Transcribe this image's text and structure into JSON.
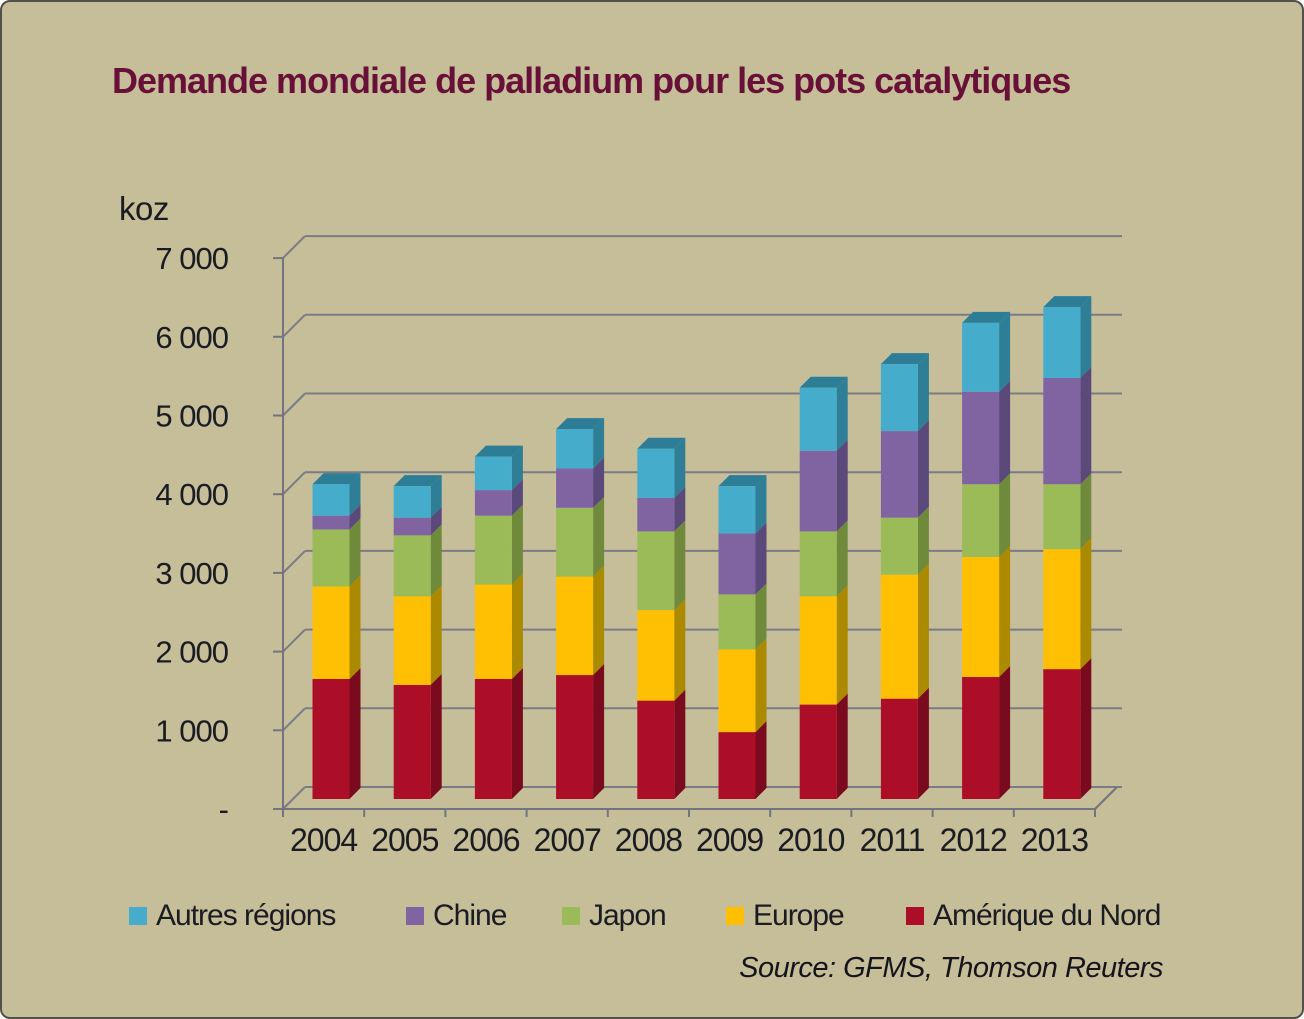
{
  "frame": {
    "background": "#C5BE99",
    "border_color": "#51504C"
  },
  "title": {
    "text": "Demande mondiale de palladium pour les pots catalytiques",
    "color": "#681038"
  },
  "axis_unit_label": "koz",
  "source_note": "Source: GFMS,  Thomson Reuters",
  "legend": {
    "position": "bottom",
    "items": [
      {
        "label": "Autres régions",
        "color": "#45ACCB"
      },
      {
        "label": "Chine",
        "color": "#8064A2"
      },
      {
        "label": "Japon",
        "color": "#9BBB59"
      },
      {
        "label": "Europe",
        "color": "#FFC003"
      },
      {
        "label": "Amérique du Nord",
        "color": "#AC0D27"
      }
    ]
  },
  "chart_data": {
    "type": "bar",
    "stacked": true,
    "style": "3d-column",
    "title": "Demande mondiale de palladium pour les pots catalytiques",
    "unit": "koz",
    "xlabel": "",
    "ylabel": "koz",
    "ylim": [
      0,
      7000
    ],
    "y_tick_step": 1000,
    "y_tick_labels": [
      "-",
      "1 000",
      "2 000",
      "3 000",
      "4 000",
      "5 000",
      "6 000",
      "7 000"
    ],
    "grid": true,
    "legend_position": "bottom",
    "source": "Source: GFMS,  Thomson Reuters",
    "categories": [
      "2004",
      "2005",
      "2006",
      "2007",
      "2008",
      "2009",
      "2010",
      "2011",
      "2012",
      "2013"
    ],
    "stack_order_bottom_to_top": [
      "Amérique du Nord",
      "Europe",
      "Japon",
      "Chine",
      "Autres régions"
    ],
    "series": [
      {
        "name": "Amérique du Nord",
        "color": "#AC0D27",
        "side_color": "#7A0A1D",
        "top_color": "#8F0B21",
        "values": [
          1525,
          1450,
          1525,
          1575,
          1250,
          850,
          1200,
          1275,
          1550,
          1650
        ]
      },
      {
        "name": "Europe",
        "color": "#FFC003",
        "side_color": "#AC8A00",
        "top_color": "#D9A800",
        "values": [
          1175,
          1125,
          1200,
          1250,
          1150,
          1050,
          1375,
          1575,
          1525,
          1525
        ]
      },
      {
        "name": "Japon",
        "color": "#9BBB59",
        "side_color": "#6F8A3B",
        "top_color": "#86A24C",
        "values": [
          725,
          775,
          875,
          875,
          1000,
          700,
          825,
          725,
          925,
          825
        ]
      },
      {
        "name": "Chine",
        "color": "#8064A2",
        "side_color": "#5C497B",
        "top_color": "#6E558E",
        "values": [
          175,
          225,
          325,
          500,
          425,
          775,
          1025,
          1100,
          1175,
          1350
        ]
      },
      {
        "name": "Autres régions",
        "color": "#45ACCB",
        "side_color": "#2E7E97",
        "top_color": "#2C7D95",
        "values": [
          400,
          400,
          425,
          500,
          625,
          600,
          800,
          850,
          875,
          900
        ]
      }
    ],
    "totals": [
      4000,
      3975,
      4350,
      4700,
      4450,
      3975,
      5225,
      5525,
      6050,
      6250
    ]
  }
}
